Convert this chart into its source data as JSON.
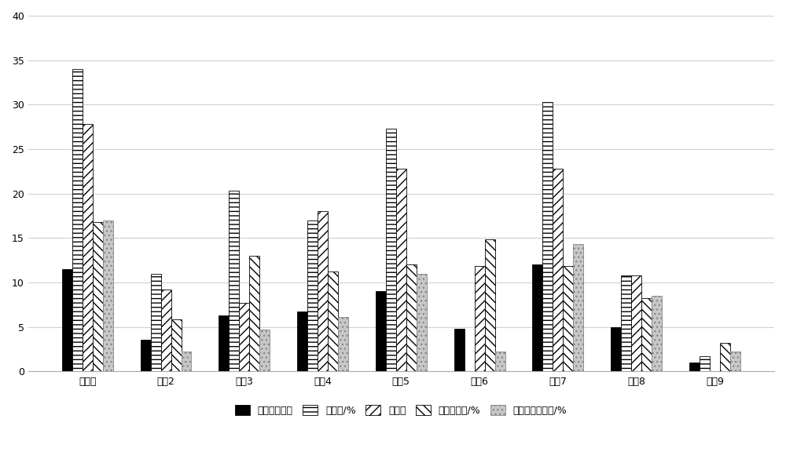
{
  "categories": [
    "实施例",
    "对比2",
    "对比3",
    "对比4",
    "对比5",
    "对比6",
    "对比7",
    "对比8",
    "对比9"
  ],
  "series": {
    "表观相对密度": [
      11.5,
      3.5,
      6.3,
      6.7,
      9.0,
      4.8,
      12.0,
      5.0,
      1.0
    ],
    "吸水率/%": [
      34.0,
      11.0,
      20.3,
      17.0,
      27.3,
      0.0,
      30.3,
      10.8,
      1.7
    ],
    "压碎值": [
      27.8,
      9.2,
      7.7,
      18.0,
      22.8,
      11.8,
      22.8,
      10.8,
      0.0
    ],
    "沙浆附着率/%": [
      16.8,
      5.8,
      13.0,
      11.2,
      12.0,
      14.8,
      11.8,
      8.2,
      3.2
    ],
    "历青黏附面积率/%": [
      17.0,
      2.2,
      4.7,
      6.1,
      11.0,
      2.2,
      14.3,
      8.5,
      2.2
    ]
  },
  "colors": [
    "#000000",
    "#ffffff",
    "#ffffff",
    "#ffffff",
    "#c8c8c8"
  ],
  "hatches": [
    "",
    "---",
    "///",
    "\\\\\\",
    "..."
  ],
  "edgecolors": [
    "#000000",
    "#000000",
    "#000000",
    "#000000",
    "#888888"
  ],
  "ylim": [
    0,
    40
  ],
  "yticks": [
    0,
    5,
    10,
    15,
    20,
    25,
    30,
    35,
    40
  ],
  "legend_labels": [
    "表观相对密度",
    "吸水率/%",
    "压碎值",
    "沙浆附着率/%",
    "历青黏附面积率/%"
  ],
  "background_color": "#ffffff",
  "grid_color": "#d0d0d0",
  "bar_width": 0.13,
  "font_size_tick": 9,
  "font_size_legend": 9
}
